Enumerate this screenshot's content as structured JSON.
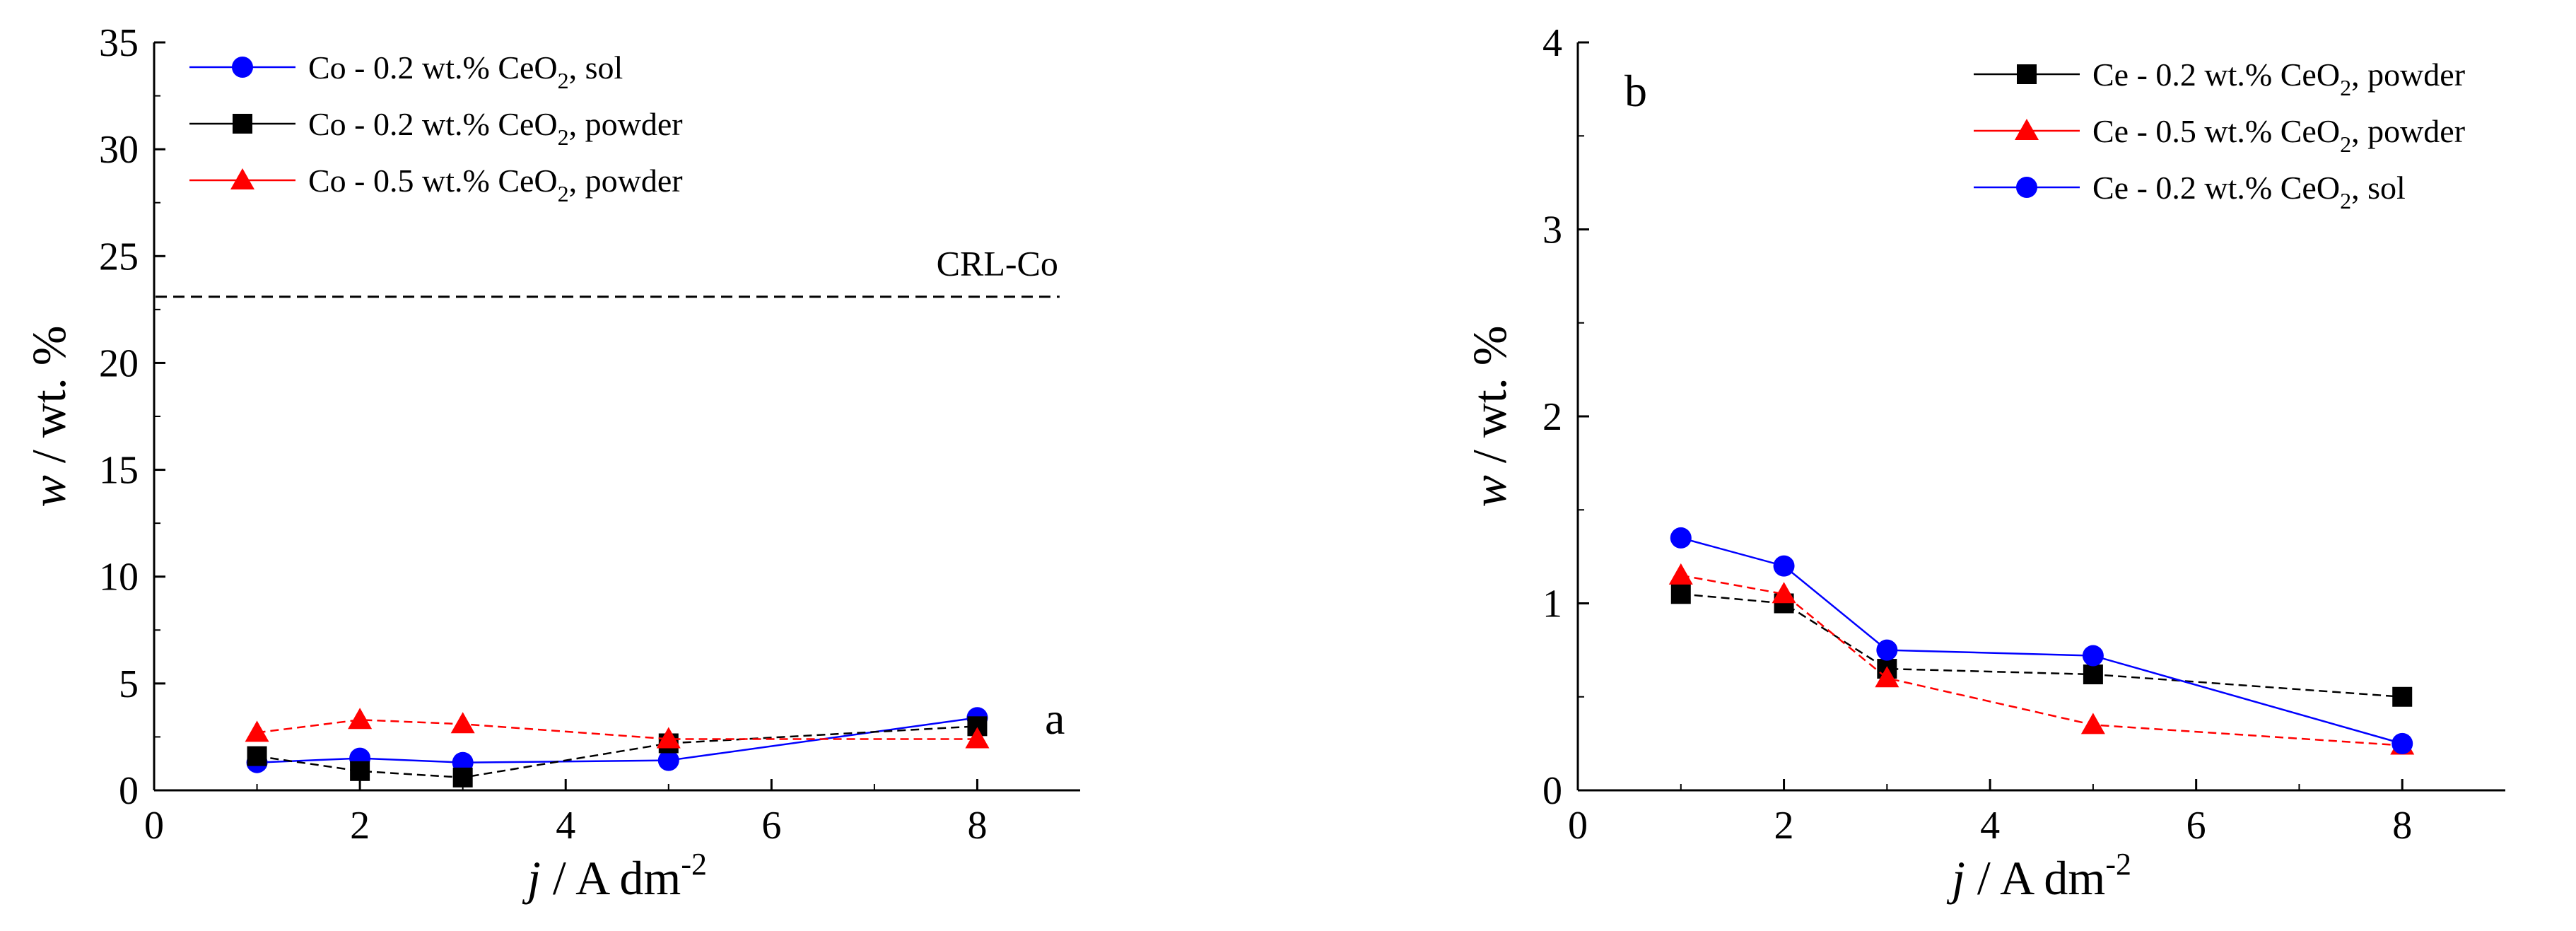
{
  "chart_data": [
    {
      "type": "line",
      "panel_label": "a",
      "xlabel": {
        "var": "j",
        "rest": " / A dm",
        "sup": "-2"
      },
      "ylabel": {
        "var": "w",
        "rest": " / wt. %"
      },
      "xlim": [
        0,
        9
      ],
      "ylim": [
        0,
        35
      ],
      "xticks": [
        0,
        2,
        4,
        6,
        8
      ],
      "yticks": [
        0,
        5,
        10,
        15,
        20,
        25,
        30,
        35
      ],
      "grid": false,
      "legend_position": "top-left",
      "x": [
        1,
        2,
        3,
        5,
        8
      ],
      "series": [
        {
          "name": "Co - 0.2 wt.% CeO2, sol",
          "legend": {
            "pre": "Co - 0.2 wt.% CeO",
            "sub": "2",
            "post": ", sol"
          },
          "values": [
            1.3,
            1.5,
            1.3,
            1.4,
            3.4
          ],
          "color": "#0000ff",
          "marker": "circle",
          "line_style": "solid"
        },
        {
          "name": "Co - 0.2 wt.% CeO2, powder",
          "legend": {
            "pre": "Co - 0.2 wt.% CeO",
            "sub": "2",
            "post": ", powder"
          },
          "values": [
            1.6,
            0.9,
            0.6,
            2.2,
            3.0
          ],
          "color": "#000000",
          "marker": "square",
          "line_style": "dashed"
        },
        {
          "name": "Co - 0.5 wt.% CeO2, powder",
          "legend": {
            "pre": "Co - 0.5 wt.% CeO",
            "sub": "2",
            "post": ", powder"
          },
          "values": [
            2.7,
            3.3,
            3.1,
            2.4,
            2.4
          ],
          "color": "#ff0000",
          "marker": "triangle",
          "line_style": "dashed"
        }
      ],
      "reference_line": {
        "label": "CRL-Co",
        "y": 23.1,
        "x_range": [
          0,
          8.8
        ],
        "color": "#000000",
        "line_style": "dashed"
      }
    },
    {
      "type": "line",
      "panel_label": "b",
      "xlabel": {
        "var": "j",
        "rest": " / A dm",
        "sup": "-2"
      },
      "ylabel": {
        "var": "w",
        "rest": " / wt. %"
      },
      "xlim": [
        0,
        9
      ],
      "ylim": [
        0,
        4
      ],
      "xticks": [
        0,
        2,
        4,
        6,
        8
      ],
      "yticks": [
        0,
        1,
        2,
        3,
        4
      ],
      "grid": false,
      "legend_position": "top-right",
      "x": [
        1,
        2,
        3,
        5,
        8
      ],
      "series": [
        {
          "name": "Ce - 0.2 wt.% CeO2, powder",
          "legend": {
            "pre": "Ce - 0.2 wt.% CeO",
            "sub": "2",
            "post": ", powder"
          },
          "values": [
            1.05,
            1.0,
            0.65,
            0.62,
            0.5
          ],
          "color": "#000000",
          "marker": "square",
          "line_style": "dashed"
        },
        {
          "name": "Ce - 0.5 wt.% CeO2, powder",
          "legend": {
            "pre": "Ce - 0.5 wt.% CeO",
            "sub": "2",
            "post": ", powder"
          },
          "values": [
            1.15,
            1.05,
            0.6,
            0.35,
            0.24
          ],
          "color": "#ff0000",
          "marker": "triangle",
          "line_style": "dashed"
        },
        {
          "name": "Ce - 0.2 wt.% CeO2, sol",
          "legend": {
            "pre": "Ce - 0.2 wt.% CeO",
            "sub": "2",
            "post": ", sol"
          },
          "values": [
            1.35,
            1.2,
            0.75,
            0.72,
            0.25
          ],
          "color": "#0000ff",
          "marker": "circle",
          "line_style": "solid"
        }
      ]
    }
  ]
}
